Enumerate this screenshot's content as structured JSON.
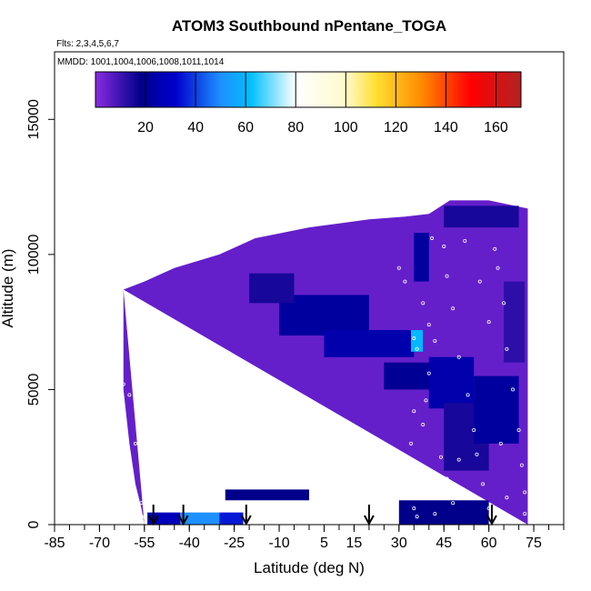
{
  "chart_data": {
    "type": "heatmap",
    "title": "ATOM3 Southbound nPentane_TOGA",
    "flights_note": "Flts: 2,3,4,5,6,7",
    "dates_note": "MMDD: 1001,1004,1006,1008,1011,1014",
    "xlabel": "Latitude (deg N)",
    "ylabel": "Altitude (m)",
    "xlim": [
      -85,
      85
    ],
    "ylim": [
      0,
      17500
    ],
    "x_tick_labels": [
      "-85",
      "-70",
      "-55",
      "-40",
      "-25",
      "-10",
      "5",
      "15",
      "30",
      "45",
      "60",
      "75"
    ],
    "x_tick_values": [
      -85,
      -70,
      -55,
      -40,
      -25,
      -10,
      5,
      15,
      30,
      45,
      60,
      75
    ],
    "y_tick_labels": [
      "0",
      "5000",
      "10000",
      "15000"
    ],
    "y_tick_values": [
      0,
      5000,
      10000,
      15000
    ],
    "colorbar": {
      "range": [
        0,
        170
      ],
      "tick_labels": [
        "20",
        "40",
        "60",
        "80",
        "100",
        "120",
        "140",
        "160"
      ],
      "tick_values": [
        20,
        40,
        60,
        80,
        100,
        120,
        140,
        160
      ],
      "stops": [
        {
          "v": 0,
          "c": "#8a2be2"
        },
        {
          "v": 18,
          "c": "#00008b"
        },
        {
          "v": 32,
          "c": "#0000cd"
        },
        {
          "v": 50,
          "c": "#1e90ff"
        },
        {
          "v": 62,
          "c": "#00bfff"
        },
        {
          "v": 80,
          "c": "#ffffff"
        },
        {
          "v": 100,
          "c": "#fffacd"
        },
        {
          "v": 112,
          "c": "#ffe033"
        },
        {
          "v": 130,
          "c": "#ff8c00"
        },
        {
          "v": 150,
          "c": "#ff0000"
        },
        {
          "v": 170,
          "c": "#b22222"
        }
      ]
    },
    "base_value": 5,
    "coverage_top": [
      [
        -62,
        8700
      ],
      [
        -55,
        9000
      ],
      [
        -45,
        9500
      ],
      [
        -30,
        10000
      ],
      [
        -18,
        10600
      ],
      [
        0,
        11000
      ],
      [
        20,
        11300
      ],
      [
        32,
        11400
      ],
      [
        40,
        11500
      ],
      [
        47,
        12000
      ],
      [
        60,
        12000
      ],
      [
        70,
        11700
      ]
    ],
    "coverage_left": [
      [
        -62,
        8700
      ],
      [
        -62,
        5000
      ],
      [
        -60,
        3000
      ],
      [
        -58,
        1500
      ],
      [
        -56,
        600
      ],
      [
        -55,
        0
      ]
    ],
    "coverage_right_lat": 73,
    "features": [
      {
        "lat": [
          -54,
          -43
        ],
        "alt": [
          0,
          450
        ],
        "v": 28
      },
      {
        "lat": [
          -43,
          -30
        ],
        "alt": [
          0,
          450
        ],
        "v": 50
      },
      {
        "lat": [
          -30,
          -22
        ],
        "alt": [
          0,
          450
        ],
        "v": 35
      },
      {
        "lat": [
          -28,
          0
        ],
        "alt": [
          900,
          1300
        ],
        "v": 18
      },
      {
        "lat": [
          -10,
          20
        ],
        "alt": [
          7000,
          8500
        ],
        "v": 22
      },
      {
        "lat": [
          5,
          35
        ],
        "alt": [
          6200,
          7200
        ],
        "v": 25
      },
      {
        "lat": [
          -20,
          -5
        ],
        "alt": [
          8200,
          9300
        ],
        "v": 15
      },
      {
        "lat": [
          25,
          45
        ],
        "alt": [
          5000,
          6000
        ],
        "v": 20
      },
      {
        "lat": [
          34,
          38
        ],
        "alt": [
          6400,
          7200
        ],
        "v": 60
      },
      {
        "lat": [
          40,
          55
        ],
        "alt": [
          4300,
          6200
        ],
        "v": 25
      },
      {
        "lat": [
          35,
          40
        ],
        "alt": [
          9000,
          10800
        ],
        "v": 22
      },
      {
        "lat": [
          45,
          60
        ],
        "alt": [
          2000,
          4500
        ],
        "v": 15
      },
      {
        "lat": [
          55,
          70
        ],
        "alt": [
          3000,
          5500
        ],
        "v": 22
      },
      {
        "lat": [
          45,
          70
        ],
        "alt": [
          11000,
          11800
        ],
        "v": 15
      },
      {
        "lat": [
          30,
          60
        ],
        "alt": [
          0,
          900
        ],
        "v": 18
      },
      {
        "lat": [
          65,
          72
        ],
        "alt": [
          6000,
          9000
        ],
        "v": 12
      }
    ],
    "sample_points": [
      [
        -62,
        5200
      ],
      [
        -60,
        4800
      ],
      [
        -58,
        3000
      ],
      [
        -56,
        800
      ],
      [
        -55,
        300
      ],
      [
        -22,
        1900
      ],
      [
        -22,
        600
      ],
      [
        30,
        9500
      ],
      [
        32,
        9000
      ],
      [
        35,
        6900
      ],
      [
        36,
        6500
      ],
      [
        35,
        4200
      ],
      [
        34,
        3000
      ],
      [
        35,
        2000
      ],
      [
        34,
        1200
      ],
      [
        35,
        600
      ],
      [
        36,
        300
      ],
      [
        38,
        8200
      ],
      [
        40,
        7400
      ],
      [
        40,
        5600
      ],
      [
        42,
        6800
      ],
      [
        41,
        10600
      ],
      [
        45,
        10300
      ],
      [
        46,
        9200
      ],
      [
        48,
        8000
      ],
      [
        50,
        6200
      ],
      [
        53,
        4800
      ],
      [
        55,
        3500
      ],
      [
        56,
        2600
      ],
      [
        58,
        1500
      ],
      [
        60,
        600
      ],
      [
        62,
        10200
      ],
      [
        63,
        9500
      ],
      [
        65,
        8200
      ],
      [
        66,
        6500
      ],
      [
        68,
        5000
      ],
      [
        70,
        3500
      ],
      [
        71,
        2200
      ],
      [
        72,
        1200
      ],
      [
        72,
        400
      ],
      [
        44,
        2500
      ],
      [
        46,
        1700
      ],
      [
        48,
        800
      ],
      [
        52,
        10500
      ],
      [
        57,
        9000
      ],
      [
        60,
        7500
      ],
      [
        42,
        400
      ],
      [
        38,
        3700
      ],
      [
        39,
        4600
      ],
      [
        50,
        2400
      ],
      [
        64,
        3000
      ],
      [
        66,
        1000
      ]
    ],
    "flight_markers_lat": [
      -52,
      -42,
      -21,
      20,
      61
    ]
  }
}
